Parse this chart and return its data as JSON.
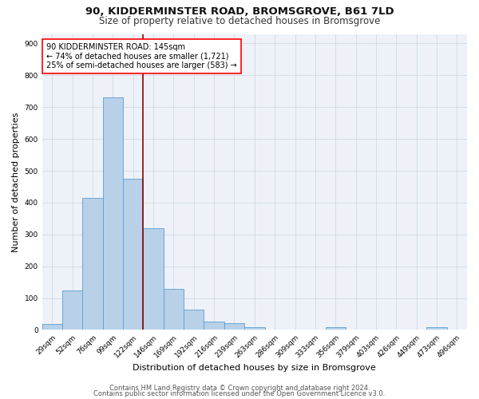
{
  "title": "90, KIDDERMINSTER ROAD, BROMSGROVE, B61 7LD",
  "subtitle": "Size of property relative to detached houses in Bromsgrove",
  "xlabel": "Distribution of detached houses by size in Bromsgrove",
  "ylabel": "Number of detached properties",
  "categories": [
    "29sqm",
    "52sqm",
    "76sqm",
    "99sqm",
    "122sqm",
    "146sqm",
    "169sqm",
    "192sqm",
    "216sqm",
    "239sqm",
    "263sqm",
    "286sqm",
    "309sqm",
    "333sqm",
    "356sqm",
    "379sqm",
    "403sqm",
    "426sqm",
    "449sqm",
    "473sqm",
    "496sqm"
  ],
  "values": [
    18,
    125,
    415,
    730,
    475,
    320,
    130,
    65,
    27,
    22,
    9,
    0,
    0,
    0,
    8,
    0,
    0,
    0,
    0,
    9,
    0
  ],
  "bar_color": "#b8d0e8",
  "bar_edge_color": "#5a9fd4",
  "vline_color": "#8b0000",
  "annotation_text": "90 KIDDERMINSTER ROAD: 145sqm\n← 74% of detached houses are smaller (1,721)\n25% of semi-detached houses are larger (583) →",
  "annotation_box_color": "white",
  "annotation_box_edge_color": "red",
  "ylim": [
    0,
    930
  ],
  "yticks": [
    0,
    100,
    200,
    300,
    400,
    500,
    600,
    700,
    800,
    900
  ],
  "footer1": "Contains HM Land Registry data © Crown copyright and database right 2024.",
  "footer2": "Contains public sector information licensed under the Open Government Licence v3.0.",
  "bg_color": "#eef2f8",
  "fig_bg_color": "#ffffff",
  "title_fontsize": 9.5,
  "subtitle_fontsize": 8.5,
  "axis_label_fontsize": 8,
  "tick_fontsize": 6.5,
  "annotation_fontsize": 7,
  "footer_fontsize": 6
}
